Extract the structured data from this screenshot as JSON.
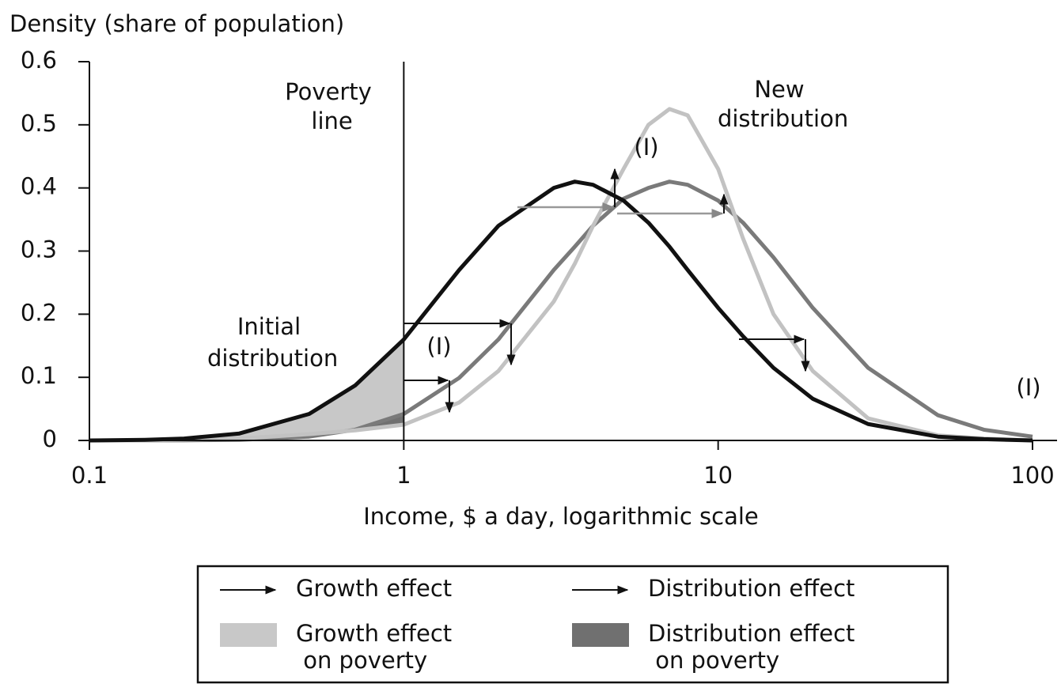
{
  "chart_data": {
    "type": "line",
    "ylabel": "Density (share of population)",
    "xlabel": "Income, $ a day, logarithmic scale",
    "log_x": true,
    "xlim": [
      0.1,
      100
    ],
    "xticks": [
      0.1,
      1,
      10,
      100
    ],
    "ylim": [
      0,
      0.6
    ],
    "yticks": [
      0,
      0.1,
      0.2,
      0.3,
      0.4,
      0.5,
      0.6
    ],
    "x": [
      0.1,
      0.15,
      0.2,
      0.3,
      0.5,
      0.7,
      1,
      1.5,
      2,
      3,
      3.5,
      4,
      5,
      6,
      7,
      8,
      10,
      12,
      15,
      20,
      30,
      50,
      70,
      100
    ],
    "series": [
      {
        "name": "Initial distribution",
        "color": "#111111",
        "values": [
          0,
          0.001,
          0.003,
          0.011,
          0.042,
          0.087,
          0.16,
          0.27,
          0.34,
          0.4,
          0.41,
          0.405,
          0.38,
          0.345,
          0.307,
          0.27,
          0.21,
          0.165,
          0.115,
          0.066,
          0.026,
          0.006,
          0.002,
          0
        ]
      },
      {
        "color": "#7a7a7a",
        "values": [
          0,
          0,
          0.0002,
          0.001,
          0.006,
          0.017,
          0.042,
          0.099,
          0.16,
          0.27,
          0.307,
          0.34,
          0.383,
          0.4,
          0.41,
          0.405,
          0.38,
          0.345,
          0.29,
          0.21,
          0.115,
          0.04,
          0.017,
          0.006
        ]
      },
      {
        "name": "New distribution",
        "color": "#c2c2c2",
        "values": [
          0,
          0,
          0.001,
          0.003,
          0.01,
          0.016,
          0.025,
          0.06,
          0.11,
          0.22,
          0.28,
          0.34,
          0.43,
          0.5,
          0.525,
          0.515,
          0.43,
          0.32,
          0.2,
          0.11,
          0.035,
          0.008,
          0.003,
          0
        ]
      }
    ],
    "poverty_line": {
      "value": 1,
      "label": "Poverty line"
    },
    "annotations": [
      "(I)",
      "(I)",
      "(I)"
    ],
    "legend": {
      "items": [
        {
          "label": "Growth effect",
          "kind": "arrow",
          "color": "#111111"
        },
        {
          "label": "Distribution effect",
          "kind": "arrow",
          "color": "#111111"
        },
        {
          "label": "Growth effect on poverty",
          "kind": "fill",
          "color": "#c8c8c8"
        },
        {
          "label": "Distribution effect on poverty",
          "kind": "fill",
          "color": "#707070"
        }
      ]
    }
  }
}
